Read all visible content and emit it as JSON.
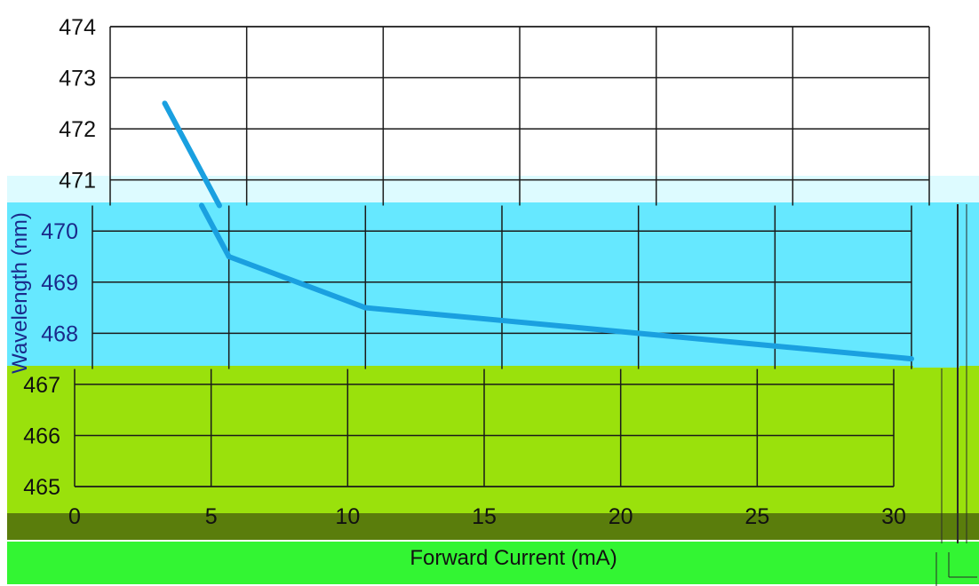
{
  "chart_data": {
    "type": "line",
    "title": "",
    "xlabel": "Forward Current (mA)",
    "ylabel": "Wavelength (nm)",
    "x_ticks": [
      "0",
      "5",
      "10",
      "15",
      "20",
      "25",
      "30"
    ],
    "y_ticks": [
      "465",
      "466",
      "467",
      "468",
      "469",
      "470",
      "471",
      "472",
      "473",
      "474"
    ],
    "xlim": [
      0,
      30
    ],
    "ylim": [
      465,
      474
    ],
    "grid": true,
    "legend": "none",
    "series": [
      {
        "x": [
          2,
          5,
          10,
          15,
          20,
          25,
          30
        ],
        "y": [
          472.5,
          469.5,
          468.5,
          468.25,
          468.0,
          467.75,
          467.5
        ]
      }
    ],
    "colors": {
      "line": "#1aa0e0",
      "grid": "#1a1a1a",
      "band_cyan": "#66e8ff",
      "band_cyan_light": "#ddfbff",
      "band_lime": "#9ae10c",
      "band_olive": "#5a7d0c",
      "band_green": "#33f533",
      "text": "#111111",
      "text_blue": "#1a2a8a"
    }
  }
}
